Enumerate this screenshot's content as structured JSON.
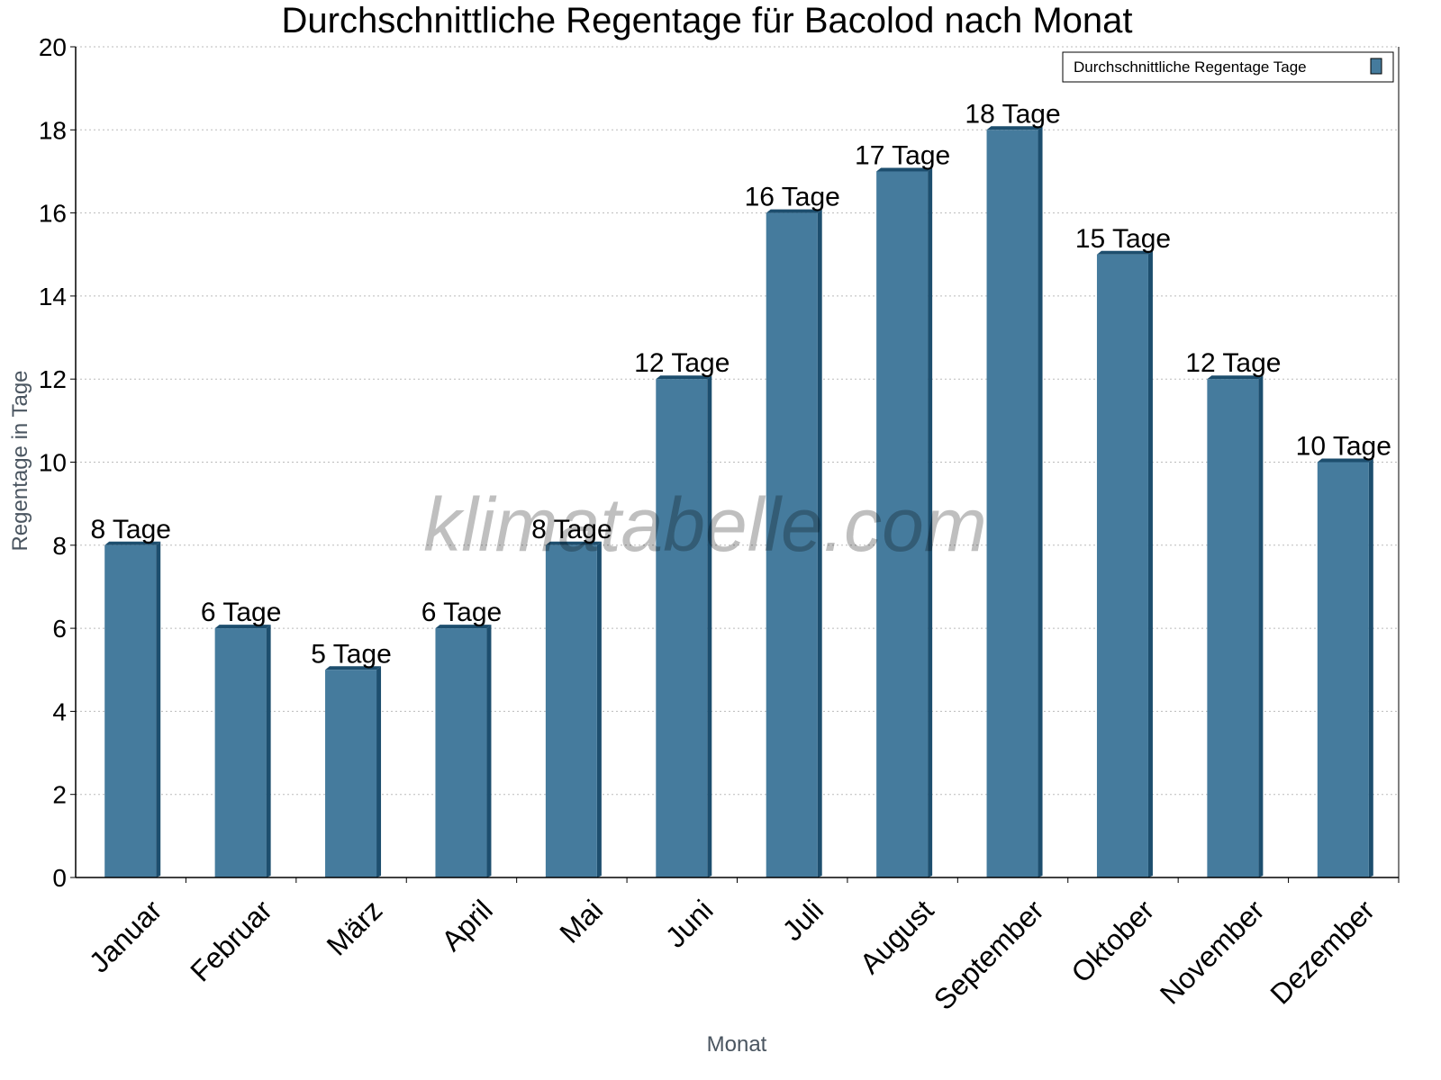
{
  "chart_data": {
    "type": "bar",
    "title": "Durchschnittliche Regentage für Bacolod nach Monat",
    "xlabel": "Monat",
    "ylabel": "Regentage in Tage",
    "categories": [
      "Januar",
      "Februar",
      "März",
      "April",
      "Mai",
      "Juni",
      "Juli",
      "August",
      "September",
      "Oktober",
      "November",
      "Dezember"
    ],
    "series": [
      {
        "name": "Durchschnittliche Regentage Tage",
        "values": [
          8,
          6,
          5,
          6,
          8,
          12,
          16,
          17,
          18,
          15,
          12,
          10
        ],
        "color": "#457b9d",
        "side_color": "#1d4e6e"
      }
    ],
    "data_labels": [
      "8 Tage",
      "6 Tage",
      "5 Tage",
      "6 Tage",
      "8 Tage",
      "12 Tage",
      "16 Tage",
      "17 Tage",
      "18 Tage",
      "15 Tage",
      "12 Tage",
      "10 Tage"
    ],
    "ylim": [
      0,
      20
    ],
    "yticks": [
      0,
      2,
      4,
      6,
      8,
      10,
      12,
      14,
      16,
      18,
      20
    ],
    "grid": true,
    "legend": "top-right",
    "watermark": "klimatabelle.com"
  }
}
